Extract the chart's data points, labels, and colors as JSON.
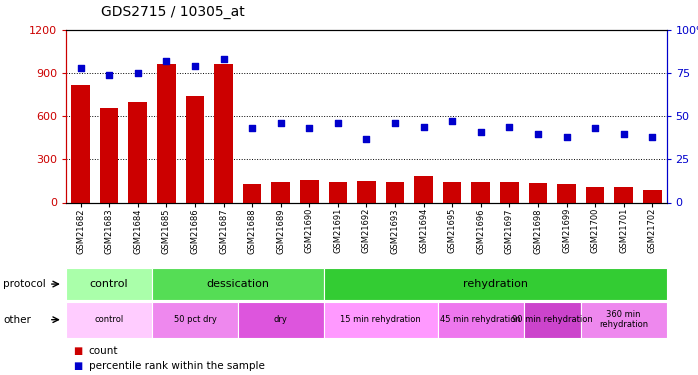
{
  "title": "GDS2715 / 10305_at",
  "samples": [
    "GSM21682",
    "GSM21683",
    "GSM21684",
    "GSM21685",
    "GSM21686",
    "GSM21687",
    "GSM21688",
    "GSM21689",
    "GSM21690",
    "GSM21691",
    "GSM21692",
    "GSM21693",
    "GSM21694",
    "GSM21695",
    "GSM21696",
    "GSM21697",
    "GSM21698",
    "GSM21699",
    "GSM21700",
    "GSM21701",
    "GSM21702"
  ],
  "counts": [
    820,
    660,
    700,
    960,
    740,
    960,
    130,
    140,
    160,
    145,
    150,
    140,
    185,
    145,
    145,
    145,
    135,
    130,
    110,
    110,
    90
  ],
  "percentiles": [
    78,
    74,
    75,
    82,
    79,
    83,
    43,
    46,
    43,
    46,
    37,
    46,
    44,
    47,
    41,
    44,
    40,
    38,
    43,
    40,
    38
  ],
  "bar_color": "#cc0000",
  "dot_color": "#0000cc",
  "ylim_left": [
    0,
    1200
  ],
  "ylim_right": [
    0,
    100
  ],
  "yticks_left": [
    0,
    300,
    600,
    900,
    1200
  ],
  "yticks_right": [
    0,
    25,
    50,
    75,
    100
  ],
  "protocol_groups": [
    {
      "label": "control",
      "start": 0,
      "end": 3,
      "color": "#aaffaa"
    },
    {
      "label": "dessication",
      "start": 3,
      "end": 9,
      "color": "#55dd55"
    },
    {
      "label": "rehydration",
      "start": 9,
      "end": 21,
      "color": "#33cc33"
    }
  ],
  "other_groups": [
    {
      "label": "control",
      "start": 0,
      "end": 3,
      "color": "#ffccff"
    },
    {
      "label": "50 pct dry",
      "start": 3,
      "end": 6,
      "color": "#ee88ee"
    },
    {
      "label": "dry",
      "start": 6,
      "end": 9,
      "color": "#dd55dd"
    },
    {
      "label": "15 min rehydration",
      "start": 9,
      "end": 13,
      "color": "#ff99ff"
    },
    {
      "label": "45 min rehydration",
      "start": 13,
      "end": 16,
      "color": "#ee77ee"
    },
    {
      "label": "90 min rehydration",
      "start": 16,
      "end": 18,
      "color": "#cc44cc"
    },
    {
      "label": "360 min\nrehydration",
      "start": 18,
      "end": 21,
      "color": "#ee88ee"
    }
  ],
  "bg_color": "#ffffff"
}
